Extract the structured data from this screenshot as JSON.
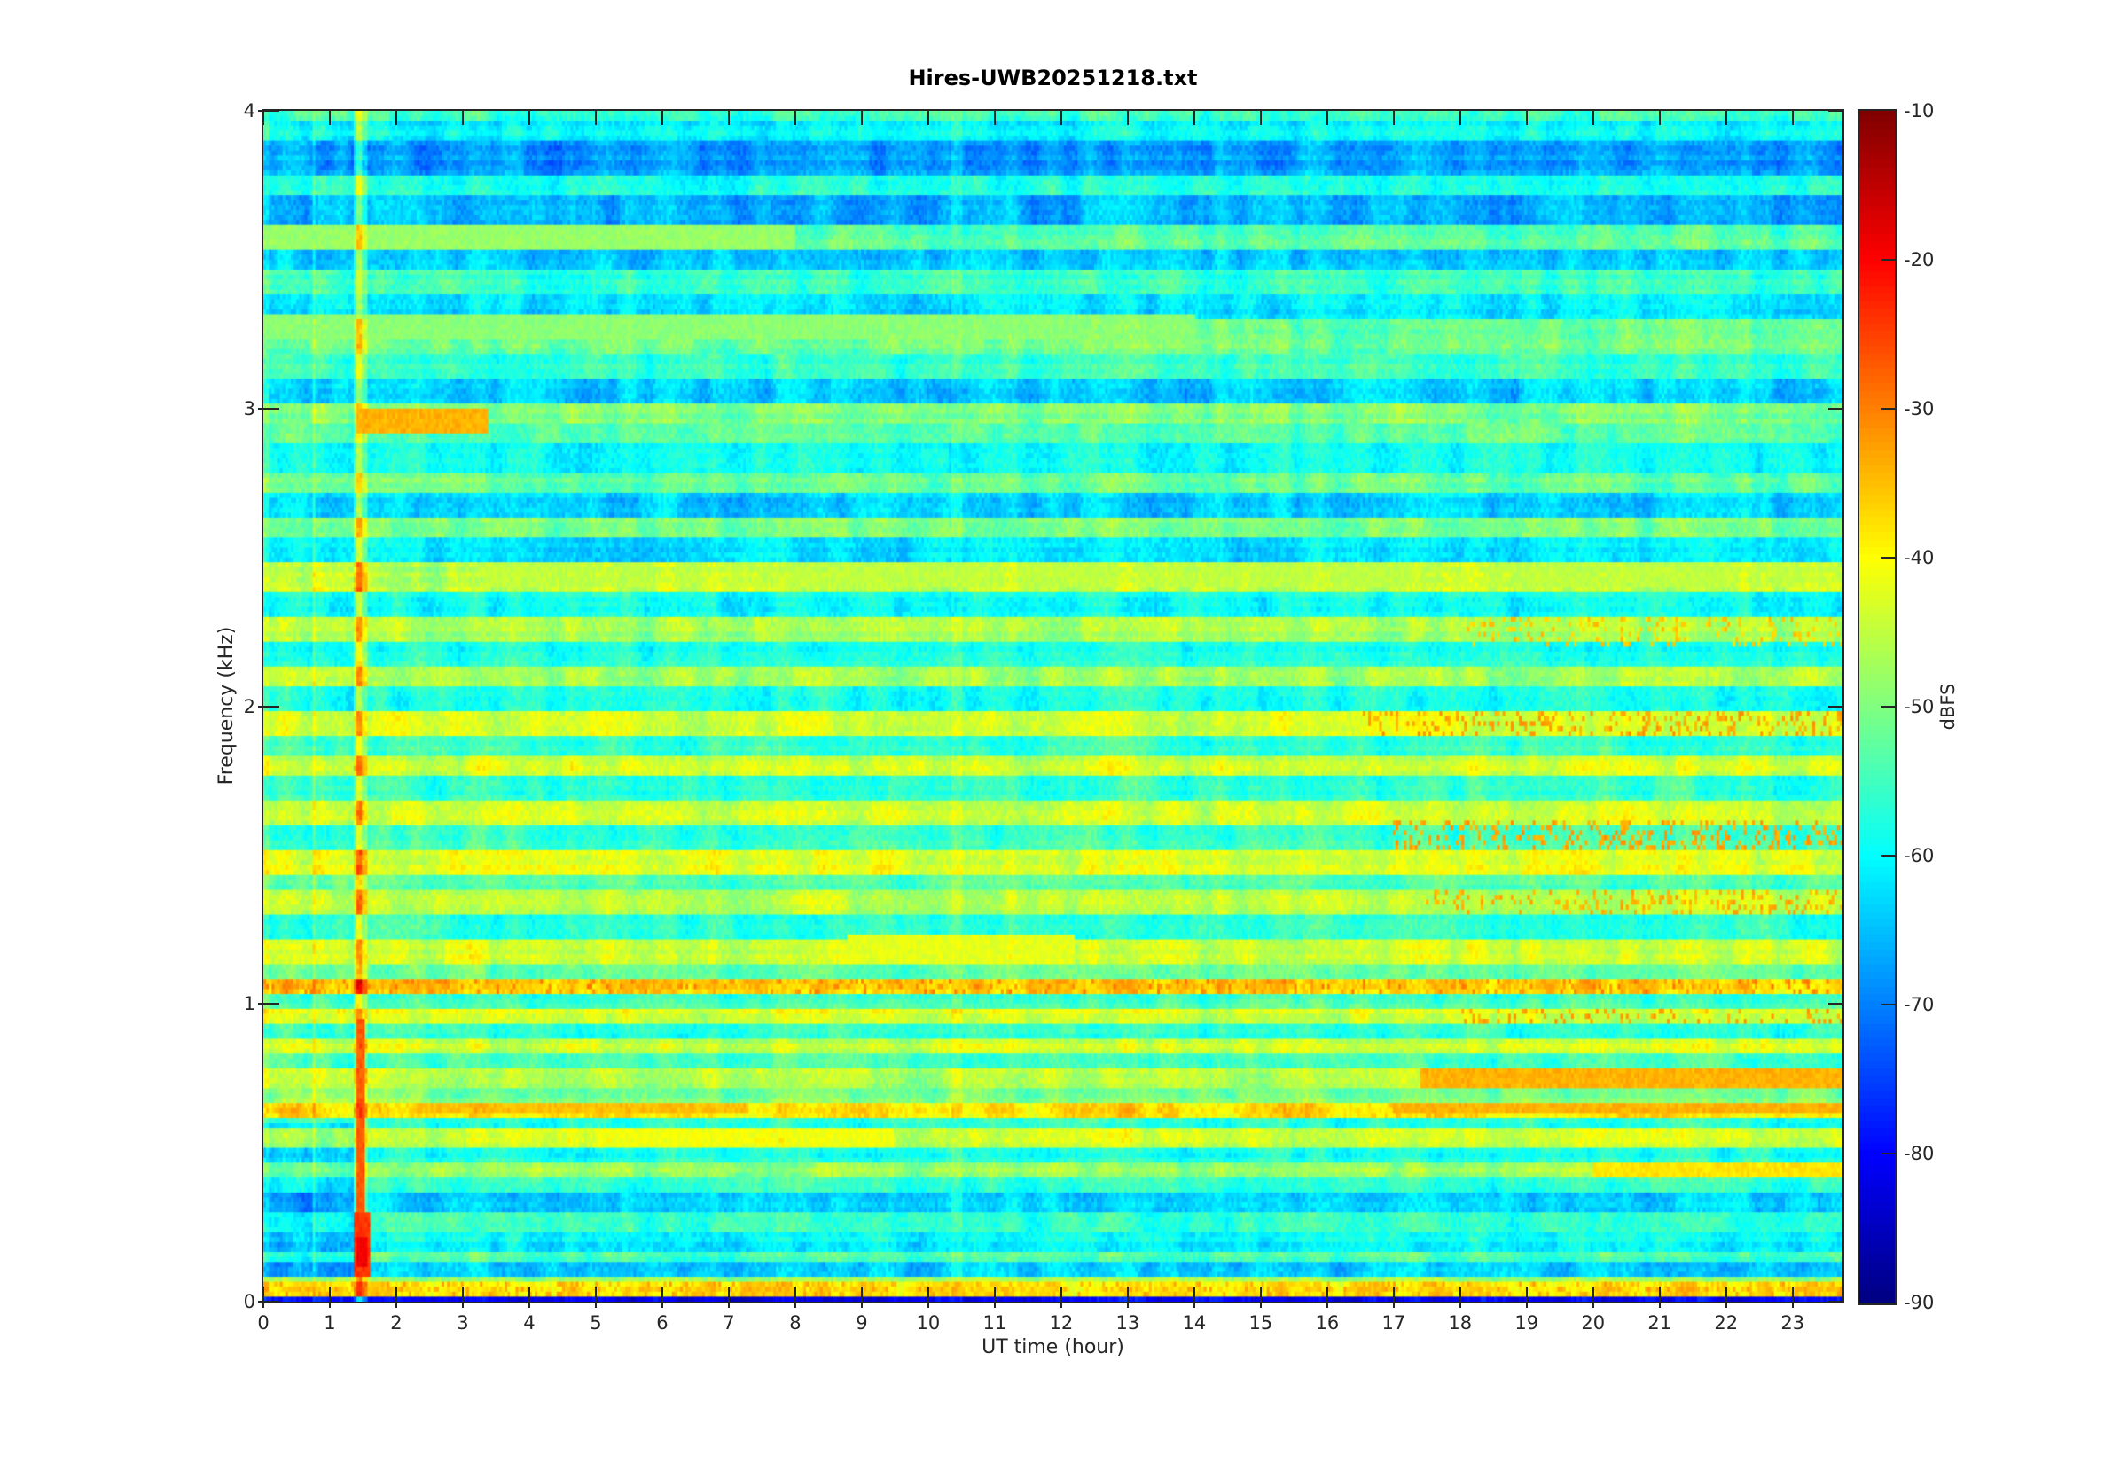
{
  "figure": {
    "title": "Hires-UWB20251218.txt",
    "background_color": "#ffffff",
    "axis_color": "#262626"
  },
  "chart_data": {
    "type": "heatmap",
    "subtype": "spectrogram",
    "title": "Hires-UWB20251218.txt",
    "xlabel": "UT time (hour)",
    "ylabel": "Frequency (kHz)",
    "colorbar_label": "dBFS",
    "colormap": "jet",
    "grid": false,
    "x_range_hours": [
      0,
      23.75
    ],
    "y_range_khz": [
      0,
      4
    ],
    "value_range_dbfs": [
      -90,
      -10
    ],
    "x_ticks": [
      0,
      1,
      2,
      3,
      4,
      5,
      6,
      7,
      8,
      9,
      10,
      11,
      12,
      13,
      14,
      15,
      16,
      17,
      18,
      19,
      20,
      21,
      22,
      23
    ],
    "y_ticks": [
      0,
      1,
      2,
      3,
      4
    ],
    "colorbar_ticks": [
      -10,
      -20,
      -30,
      -40,
      -50,
      -60,
      -70,
      -80,
      -90
    ],
    "freq_profile_dbfs": [
      {
        "f": [
          0.0,
          0.015
        ],
        "db": -80
      },
      {
        "f": [
          0.015,
          0.06
        ],
        "db": -38
      },
      {
        "f": [
          0.06,
          0.09
        ],
        "db": -47
      },
      {
        "f": [
          0.09,
          0.13
        ],
        "db": -63
      },
      {
        "f": [
          0.13,
          0.17
        ],
        "db": -54
      },
      {
        "f": [
          0.17,
          0.24
        ],
        "db": -60
      },
      {
        "f": [
          0.24,
          0.3
        ],
        "db": -56
      },
      {
        "f": [
          0.3,
          0.36
        ],
        "db": -64
      },
      {
        "f": [
          0.36,
          0.42
        ],
        "db": -57
      },
      {
        "f": [
          0.42,
          0.465
        ],
        "db": -48
      },
      {
        "f": [
          0.465,
          0.52
        ],
        "db": -58
      },
      {
        "f": [
          0.52,
          0.58
        ],
        "db": -44
      },
      {
        "f": [
          0.58,
          0.625
        ],
        "db": -56
      },
      {
        "f": [
          0.625,
          0.67
        ],
        "db": -38
      },
      {
        "f": [
          0.67,
          0.72
        ],
        "db": -50
      },
      {
        "f": [
          0.72,
          0.78
        ],
        "db": -46
      },
      {
        "f": [
          0.78,
          0.83
        ],
        "db": -55
      },
      {
        "f": [
          0.83,
          0.88
        ],
        "db": -44
      },
      {
        "f": [
          0.88,
          0.93
        ],
        "db": -56
      },
      {
        "f": [
          0.93,
          0.99
        ],
        "db": -43
      },
      {
        "f": [
          0.99,
          1.03
        ],
        "db": -55
      },
      {
        "f": [
          1.03,
          1.08
        ],
        "db": -36
      },
      {
        "f": [
          1.08,
          1.14
        ],
        "db": -52
      },
      {
        "f": [
          1.14,
          1.22
        ],
        "db": -44
      },
      {
        "f": [
          1.22,
          1.3
        ],
        "db": -56
      },
      {
        "f": [
          1.3,
          1.38
        ],
        "db": -45
      },
      {
        "f": [
          1.38,
          1.44
        ],
        "db": -54
      },
      {
        "f": [
          1.44,
          1.52
        ],
        "db": -43
      },
      {
        "f": [
          1.52,
          1.6
        ],
        "db": -56
      },
      {
        "f": [
          1.6,
          1.68
        ],
        "db": -44
      },
      {
        "f": [
          1.68,
          1.76
        ],
        "db": -57
      },
      {
        "f": [
          1.76,
          1.83
        ],
        "db": -44
      },
      {
        "f": [
          1.83,
          1.9
        ],
        "db": -56
      },
      {
        "f": [
          1.9,
          1.98
        ],
        "db": -44
      },
      {
        "f": [
          1.98,
          2.06
        ],
        "db": -58
      },
      {
        "f": [
          2.06,
          2.13
        ],
        "db": -47
      },
      {
        "f": [
          2.13,
          2.22
        ],
        "db": -58
      },
      {
        "f": [
          2.22,
          2.3
        ],
        "db": -47
      },
      {
        "f": [
          2.3,
          2.39
        ],
        "db": -59
      },
      {
        "f": [
          2.39,
          2.49
        ],
        "db": -46
      },
      {
        "f": [
          2.49,
          2.56
        ],
        "db": -62
      },
      {
        "f": [
          2.56,
          2.63
        ],
        "db": -50
      },
      {
        "f": [
          2.63,
          2.71
        ],
        "db": -63
      },
      {
        "f": [
          2.71,
          2.78
        ],
        "db": -52
      },
      {
        "f": [
          2.78,
          2.88
        ],
        "db": -60
      },
      {
        "f": [
          2.88,
          2.95
        ],
        "db": -53
      },
      {
        "f": [
          2.95,
          3.01
        ],
        "db": -50
      },
      {
        "f": [
          3.01,
          3.1
        ],
        "db": -64
      },
      {
        "f": [
          3.1,
          3.18
        ],
        "db": -56
      },
      {
        "f": [
          3.18,
          3.3
        ],
        "db": -52
      },
      {
        "f": [
          3.3,
          3.38
        ],
        "db": -62
      },
      {
        "f": [
          3.38,
          3.47
        ],
        "db": -56
      },
      {
        "f": [
          3.47,
          3.54
        ],
        "db": -64
      },
      {
        "f": [
          3.54,
          3.61
        ],
        "db": -53
      },
      {
        "f": [
          3.61,
          3.71
        ],
        "db": -66
      },
      {
        "f": [
          3.71,
          3.79
        ],
        "db": -58
      },
      {
        "f": [
          3.79,
          3.9
        ],
        "db": -68
      },
      {
        "f": [
          3.9,
          3.96
        ],
        "db": -60
      },
      {
        "f": [
          3.96,
          4.0
        ],
        "db": -56
      }
    ],
    "events": [
      {
        "name": "quiet-early-low",
        "t": [
          0,
          1.35
        ],
        "f": [
          0.09,
          0.6
        ],
        "op": "boost",
        "db": -5
      },
      {
        "name": "startup-column",
        "t": [
          0,
          0.07
        ],
        "f": [
          0,
          4
        ],
        "op": "boost",
        "db": 4
      },
      {
        "name": "faint-line-0745",
        "t": [
          0.73,
          0.8
        ],
        "f": [
          0,
          4
        ],
        "op": "boost",
        "db": 5
      },
      {
        "name": "cal-line-halo",
        "t": [
          1.36,
          1.55
        ],
        "f": [
          0,
          4
        ],
        "op": "boost",
        "db": 8
      },
      {
        "name": "cal-line-core",
        "t": [
          1.41,
          1.5
        ],
        "f": [
          0,
          4
        ],
        "op": "boost",
        "db": 8
      },
      {
        "name": "cal-line-hot-low",
        "t": [
          1.41,
          1.51
        ],
        "f": [
          0.25,
          0.95
        ],
        "op": "min",
        "db": -27
      },
      {
        "name": "cal-blob",
        "t": [
          1.38,
          1.6
        ],
        "f": [
          0.09,
          0.3
        ],
        "op": "min",
        "db": -24
      },
      {
        "name": "cal-blob-core",
        "t": [
          1.42,
          1.55
        ],
        "f": [
          0.11,
          0.22
        ],
        "op": "min",
        "db": -19
      },
      {
        "name": "faint-line-1040",
        "t": [
          10.35,
          10.5
        ],
        "f": [
          0,
          4
        ],
        "op": "boost",
        "db": 3
      },
      {
        "name": "band-2.95-orange-morning",
        "t": [
          1.4,
          3.4
        ],
        "f": [
          2.92,
          3.0
        ],
        "op": "min",
        "db": -34
      },
      {
        "name": "band-2.45-afternoon",
        "t": [
          3.3,
          23.75
        ],
        "f": [
          2.4,
          2.49
        ],
        "op": "min",
        "db": -45
      },
      {
        "name": "band-3.55-daytime",
        "t": [
          0,
          8.0
        ],
        "f": [
          3.54,
          3.61
        ],
        "op": "min",
        "db": -48
      },
      {
        "name": "band-3.27-daytime",
        "t": [
          0,
          14.0
        ],
        "f": [
          3.24,
          3.31
        ],
        "op": "min",
        "db": -49
      },
      {
        "name": "band-0.65-morning",
        "t": [
          2.3,
          7.3
        ],
        "f": [
          0.63,
          0.67
        ],
        "op": "min",
        "db": -35
      },
      {
        "name": "band-0.65-evening",
        "t": [
          17.0,
          23.75
        ],
        "f": [
          0.63,
          0.67
        ],
        "op": "min",
        "db": -34
      },
      {
        "name": "band-0.75-evening",
        "t": [
          17.4,
          23.75
        ],
        "f": [
          0.72,
          0.78
        ],
        "op": "min",
        "db": -34
      },
      {
        "name": "band-0.55-midday",
        "t": [
          5.0,
          9.5
        ],
        "f": [
          0.52,
          0.58
        ],
        "op": "min",
        "db": -41
      },
      {
        "name": "patch-1.18-midday",
        "t": [
          8.8,
          12.2
        ],
        "f": [
          1.14,
          1.23
        ],
        "op": "min",
        "db": -42
      },
      {
        "name": "evening-band-0.44",
        "t": [
          20.0,
          23.75
        ],
        "f": [
          0.42,
          0.465
        ],
        "op": "min",
        "db": -38
      },
      {
        "name": "flecks-1.05",
        "t": [
          0,
          23.75
        ],
        "f": [
          1.03,
          1.08
        ],
        "op": "speckle",
        "p": 0.15,
        "db": -31
      },
      {
        "name": "flecks-bottom-band",
        "t": [
          0,
          23.75
        ],
        "f": [
          0.015,
          0.06
        ],
        "op": "speckle",
        "p": 0.18,
        "db": -34
      },
      {
        "name": "evening-flecks-1.95",
        "t": [
          16.5,
          23.75
        ],
        "f": [
          1.9,
          1.98
        ],
        "op": "speckle",
        "p": 0.25,
        "db": -33
      },
      {
        "name": "evening-flecks-1.57",
        "t": [
          17.0,
          23.75
        ],
        "f": [
          1.52,
          1.62
        ],
        "op": "speckle",
        "p": 0.25,
        "db": -33
      },
      {
        "name": "evening-flecks-1.33",
        "t": [
          17.5,
          23.75
        ],
        "f": [
          1.3,
          1.39
        ],
        "op": "speckle",
        "p": 0.22,
        "db": -34
      },
      {
        "name": "evening-flecks-2.25",
        "t": [
          18.0,
          23.75
        ],
        "f": [
          2.2,
          2.3
        ],
        "op": "speckle",
        "p": 0.15,
        "db": -36
      },
      {
        "name": "evening-flecks-0.95",
        "t": [
          18.0,
          23.75
        ],
        "f": [
          0.93,
          0.99
        ],
        "op": "speckle",
        "p": 0.2,
        "db": -33
      }
    ],
    "texture": {
      "time_bins": 576,
      "freq_bins": 240,
      "cell_noise_db": 2.3,
      "band_noise_db": 3.2,
      "band_corr_bins": 7,
      "column_noise_db": 1.5,
      "row_noise_db": 1.3,
      "seed": 1218
    }
  }
}
